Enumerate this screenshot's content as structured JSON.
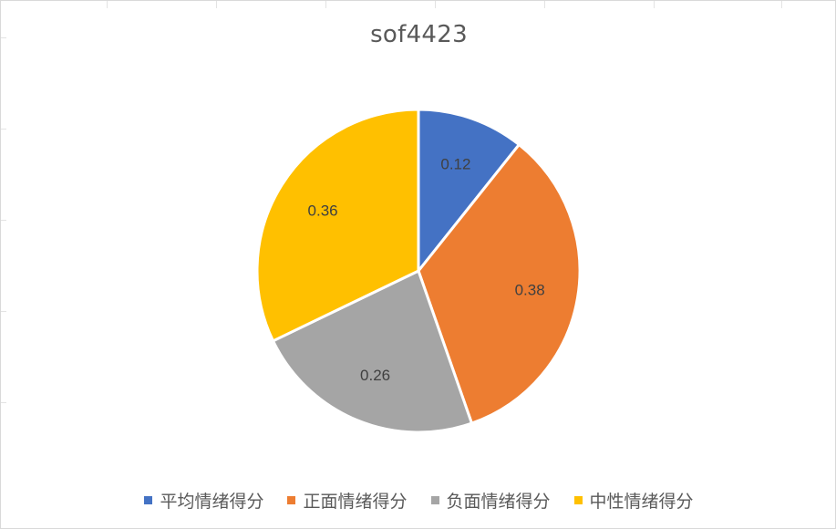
{
  "chart_data": {
    "type": "pie",
    "title": "sof4423",
    "categories": [
      "平均情绪得分",
      "正面情绪得分",
      "负面情绪得分",
      "中性情绪得分"
    ],
    "values": [
      0.12,
      0.38,
      0.26,
      0.36
    ],
    "labels": [
      "0.12",
      "0.38",
      "0.26",
      "0.36"
    ],
    "colors": [
      "#4472C4",
      "#ED7D31",
      "#A5A5A5",
      "#FFC000"
    ],
    "legend": "bottom",
    "start_angle": "12 o'clock, clockwise"
  }
}
